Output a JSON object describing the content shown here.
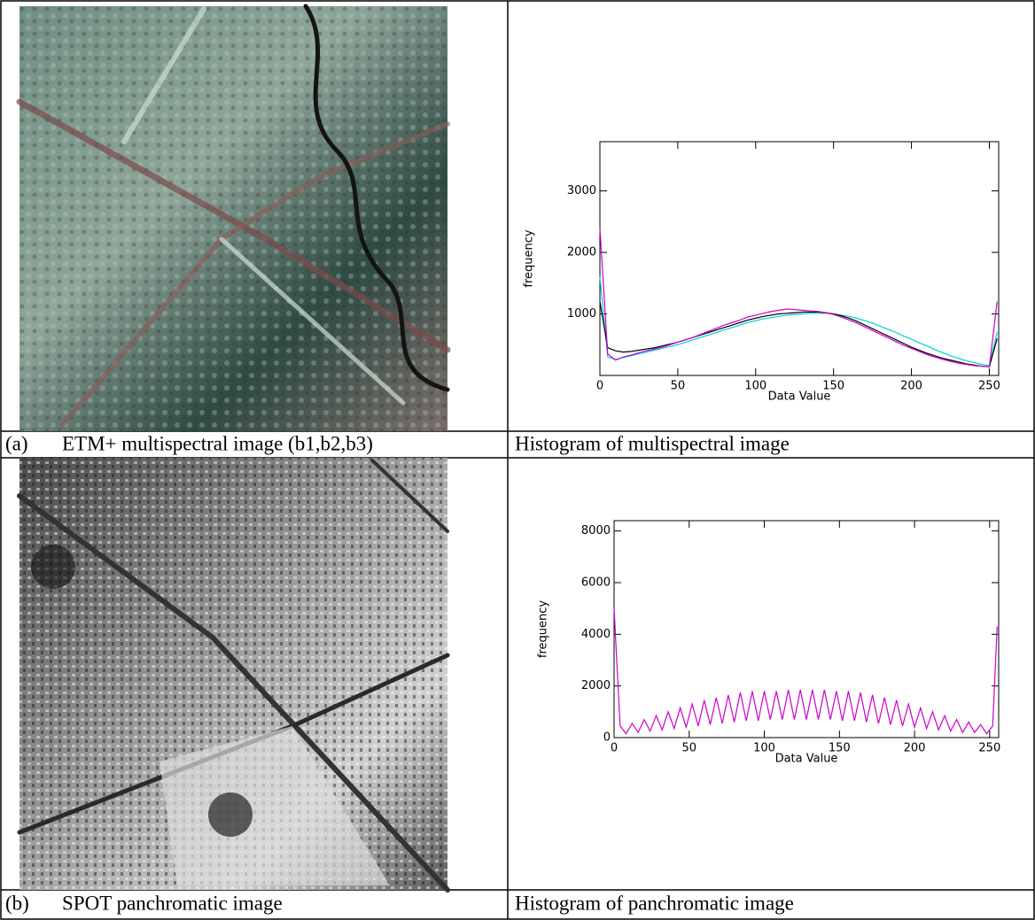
{
  "table": {
    "rows": [
      {
        "label": "(a)",
        "image_caption": "ETM+ multispectral image (b1,b2,b3)",
        "histogram_caption": "Histogram of multispectral image"
      },
      {
        "label": "(b)",
        "image_caption": "SPOT panchromatic image",
        "histogram_caption": "Histogram of panchromatic image"
      }
    ]
  },
  "chart_data": [
    {
      "type": "line",
      "xlabel": "Data Value",
      "ylabel": "frequency",
      "x": [
        0,
        5,
        10,
        15,
        20,
        25,
        30,
        35,
        40,
        45,
        50,
        55,
        60,
        65,
        70,
        75,
        80,
        85,
        90,
        95,
        100,
        105,
        110,
        115,
        120,
        125,
        130,
        135,
        140,
        145,
        150,
        155,
        160,
        165,
        170,
        175,
        180,
        185,
        190,
        195,
        200,
        205,
        210,
        215,
        220,
        225,
        230,
        235,
        240,
        245,
        250,
        255
      ],
      "xlim": [
        0,
        256
      ],
      "xticks": [
        0,
        50,
        100,
        150,
        200,
        250
      ],
      "ylim": [
        0,
        3800
      ],
      "yticks": [
        1000,
        2000,
        3000
      ],
      "series": [
        {
          "color": "#00d0d0",
          "values": [
            1600,
            300,
            260,
            290,
            320,
            350,
            380,
            410,
            440,
            470,
            500,
            540,
            580,
            620,
            660,
            700,
            740,
            780,
            820,
            860,
            890,
            920,
            940,
            960,
            980,
            990,
            1000,
            1010,
            1010,
            1010,
            1000,
            980,
            960,
            930,
            890,
            850,
            800,
            750,
            700,
            640,
            590,
            530,
            480,
            420,
            370,
            320,
            280,
            240,
            210,
            180,
            160,
            700
          ]
        },
        {
          "color": "#000000",
          "values": [
            1200,
            450,
            400,
            380,
            390,
            410,
            430,
            450,
            480,
            510,
            540,
            580,
            620,
            660,
            700,
            740,
            780,
            820,
            860,
            900,
            930,
            960,
            980,
            1000,
            1010,
            1020,
            1030,
            1030,
            1030,
            1020,
            1000,
            970,
            930,
            880,
            820,
            760,
            700,
            640,
            580,
            520,
            460,
            410,
            360,
            320,
            280,
            250,
            220,
            190,
            170,
            150,
            140,
            600
          ]
        },
        {
          "color": "#cc00cc",
          "values": [
            2400,
            350,
            250,
            300,
            330,
            370,
            400,
            430,
            460,
            500,
            540,
            580,
            620,
            670,
            720,
            770,
            820,
            860,
            900,
            950,
            980,
            1010,
            1040,
            1060,
            1080,
            1070,
            1060,
            1050,
            1040,
            1020,
            990,
            950,
            900,
            850,
            790,
            730,
            670,
            610,
            550,
            490,
            440,
            390,
            340,
            300,
            260,
            230,
            200,
            180,
            160,
            150,
            140,
            1200
          ]
        }
      ]
    },
    {
      "type": "line",
      "xlabel": "Data Value",
      "ylabel": "frequency",
      "x": [
        0,
        4,
        8,
        12,
        16,
        20,
        24,
        28,
        32,
        36,
        40,
        44,
        48,
        52,
        56,
        60,
        64,
        68,
        72,
        76,
        80,
        84,
        88,
        92,
        96,
        100,
        104,
        108,
        112,
        116,
        120,
        124,
        128,
        132,
        136,
        140,
        144,
        148,
        152,
        156,
        160,
        164,
        168,
        172,
        176,
        180,
        184,
        188,
        192,
        196,
        200,
        204,
        208,
        212,
        216,
        220,
        224,
        228,
        232,
        236,
        240,
        244,
        248,
        252,
        255
      ],
      "xlim": [
        0,
        256
      ],
      "xticks": [
        0,
        50,
        100,
        150,
        200,
        250
      ],
      "ylim": [
        0,
        8400
      ],
      "yticks": [
        0,
        2000,
        4000,
        6000,
        8000
      ],
      "series": [
        {
          "color": "#cc00cc",
          "values": [
            5000,
            450,
            150,
            550,
            200,
            700,
            250,
            850,
            300,
            1000,
            350,
            1150,
            400,
            1300,
            450,
            1450,
            500,
            1550,
            550,
            1650,
            600,
            1750,
            650,
            1800,
            650,
            1800,
            700,
            1800,
            700,
            1850,
            700,
            1850,
            700,
            1850,
            700,
            1850,
            700,
            1800,
            650,
            1800,
            650,
            1750,
            600,
            1650,
            550,
            1550,
            500,
            1450,
            450,
            1300,
            400,
            1150,
            350,
            1000,
            300,
            850,
            250,
            700,
            200,
            600,
            200,
            500,
            150,
            450,
            4300
          ]
        }
      ]
    }
  ]
}
